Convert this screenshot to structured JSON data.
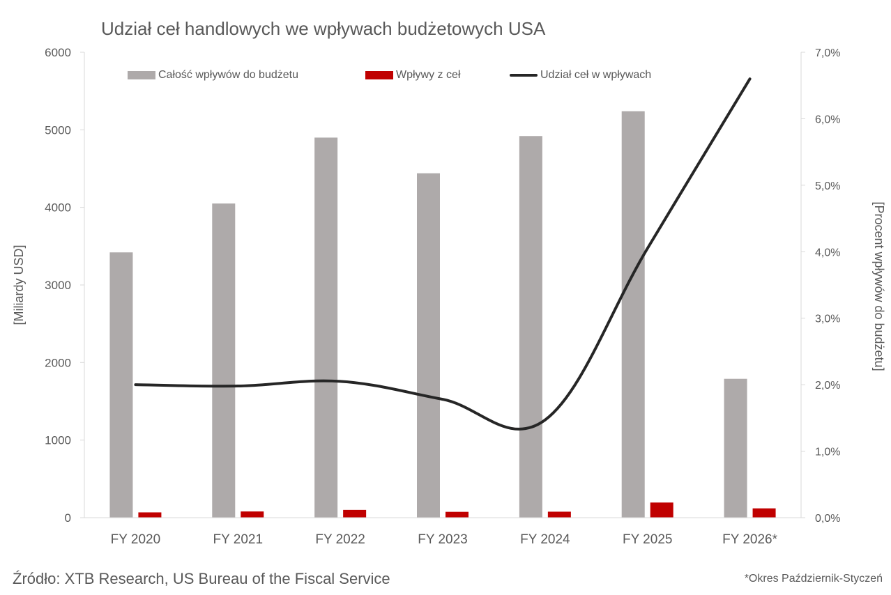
{
  "chart_data": {
    "type": "bar",
    "title": "Udział ceł handlowych we wpływach budżetowych USA",
    "categories": [
      "FY 2020",
      "FY 2021",
      "FY 2022",
      "FY 2023",
      "FY 2024",
      "FY 2025",
      "FY 2026*"
    ],
    "series": [
      {
        "name": "Całość wpływów do budżetu",
        "type": "bar",
        "axis": "left",
        "color": "#aeaaaa",
        "values": [
          3420,
          4050,
          4900,
          4440,
          4920,
          5240,
          1790
        ]
      },
      {
        "name": "Wpływy z ceł",
        "type": "bar",
        "axis": "left",
        "color": "#c00000",
        "values": [
          68,
          80,
          100,
          75,
          77,
          195,
          120
        ]
      },
      {
        "name": "Udział ceł w wpływach",
        "type": "line",
        "axis": "right",
        "color": "#262626",
        "values": [
          2.0,
          1.98,
          2.05,
          1.78,
          1.47,
          4.05,
          6.6
        ]
      }
    ],
    "ylabel": "[Miliardy USD]",
    "y2label": "[Procent wpływów do budżetu]",
    "ylim": [
      0,
      6000
    ],
    "y_ticks": [
      "0",
      "1000",
      "2000",
      "3000",
      "4000",
      "5000",
      "6000"
    ],
    "y2lim": [
      0,
      7
    ],
    "y2_ticks": [
      "0,0%",
      "1,0%",
      "2,0%",
      "3,0%",
      "4,0%",
      "5,0%",
      "6,0%",
      "7,0%"
    ],
    "legend_position": "top",
    "grid": false
  },
  "source": "Źródło: XTB Research, US Bureau of the Fiscal Service",
  "footnote": "*Okres Październik-Styczeń"
}
